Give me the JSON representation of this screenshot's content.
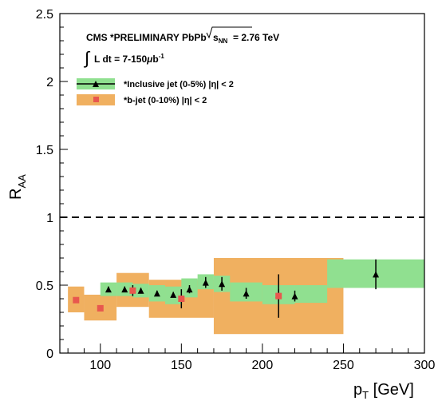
{
  "chart_data": {
    "type": "scatter",
    "xlabel": "p",
    "xlabel_sub": "T",
    "xlabel_unit": " [GeV]",
    "ylabel": "R",
    "ylabel_sub": "AA",
    "xlim": [
      75,
      300
    ],
    "ylim": [
      0,
      2.5
    ],
    "x_ticks": [
      100,
      150,
      200,
      250,
      300
    ],
    "x_tick_labels": [
      "100",
      "150",
      "200",
      "250",
      "300"
    ],
    "y_ticks": [
      0,
      0.5,
      1,
      1.5,
      2,
      2.5
    ],
    "y_tick_labels": [
      "0",
      "0.5",
      "1",
      "1.5",
      "2",
      "2.5"
    ],
    "reference_line": {
      "y": 1,
      "style": "dashed"
    },
    "annotations": {
      "line1_prefix": "CMS  *PRELIMINARY  PbPb ",
      "line1_sqrt": "s",
      "line1_sub": "NN",
      "line1_suffix": " = 2.76 TeV",
      "line2_integral": "∫",
      "line2_text": "L dt = 7-150",
      "line2_mu": "μ",
      "line2_unit": "b",
      "line2_sup": "-1"
    },
    "legend_position": "top-left",
    "series": [
      {
        "name": "*Inclusive jet  (0-5%)  |η| < 2",
        "marker": "triangle",
        "color": "#000000",
        "band_color": "#90e090",
        "points": [
          {
            "x": 105,
            "y": 0.47,
            "err_lo": 0.02,
            "err_hi": 0.02,
            "band_x0": 100,
            "band_x1": 110,
            "band_y0": 0.42,
            "band_y1": 0.52
          },
          {
            "x": 115,
            "y": 0.47,
            "err_lo": 0.02,
            "err_hi": 0.02,
            "band_x0": 110,
            "band_x1": 120,
            "band_y0": 0.42,
            "band_y1": 0.52
          },
          {
            "x": 125,
            "y": 0.46,
            "err_lo": 0.02,
            "err_hi": 0.02,
            "band_x0": 120,
            "band_x1": 130,
            "band_y0": 0.41,
            "band_y1": 0.51
          },
          {
            "x": 135,
            "y": 0.44,
            "err_lo": 0.02,
            "err_hi": 0.02,
            "band_x0": 130,
            "band_x1": 140,
            "band_y0": 0.38,
            "band_y1": 0.5
          },
          {
            "x": 145,
            "y": 0.43,
            "err_lo": 0.02,
            "err_hi": 0.02,
            "band_x0": 140,
            "band_x1": 150,
            "band_y0": 0.36,
            "band_y1": 0.49
          },
          {
            "x": 155,
            "y": 0.47,
            "err_lo": 0.03,
            "err_hi": 0.03,
            "band_x0": 150,
            "band_x1": 160,
            "band_y0": 0.41,
            "band_y1": 0.55
          },
          {
            "x": 165,
            "y": 0.52,
            "err_lo": 0.04,
            "err_hi": 0.04,
            "band_x0": 160,
            "band_x1": 170,
            "band_y0": 0.47,
            "band_y1": 0.58
          },
          {
            "x": 175,
            "y": 0.51,
            "err_lo": 0.05,
            "err_hi": 0.05,
            "band_x0": 170,
            "band_x1": 180,
            "band_y0": 0.45,
            "band_y1": 0.57
          },
          {
            "x": 190,
            "y": 0.44,
            "err_lo": 0.04,
            "err_hi": 0.04,
            "band_x0": 180,
            "band_x1": 200,
            "band_y0": 0.38,
            "band_y1": 0.52
          },
          {
            "x": 210,
            "y": 0.43,
            "err_lo": 0.04,
            "err_hi": 0.04,
            "band_x0": 200,
            "band_x1": 220,
            "band_y0": 0.36,
            "band_y1": 0.5
          },
          {
            "x": 220,
            "y": 0.42,
            "err_lo": 0.04,
            "err_hi": 0.04,
            "band_x0": 220,
            "band_x1": 240,
            "band_y0": 0.37,
            "band_y1": 0.5
          },
          {
            "x": 270,
            "y": 0.58,
            "err_lo": 0.11,
            "err_hi": 0.11,
            "band_x0": 240,
            "band_x1": 300,
            "band_y0": 0.48,
            "band_y1": 0.69
          }
        ]
      },
      {
        "name": "*b-jet  (0-10%)  |η| < 2",
        "marker": "square",
        "color": "#e8574e",
        "band_color": "#f0b060",
        "points": [
          {
            "x": 85,
            "y": 0.39,
            "err_lo": 0.01,
            "err_hi": 0.01,
            "band_x0": 80,
            "band_x1": 90,
            "band_y0": 0.3,
            "band_y1": 0.49
          },
          {
            "x": 100,
            "y": 0.33,
            "err_lo": 0.01,
            "err_hi": 0.01,
            "band_x0": 90,
            "band_x1": 110,
            "band_y0": 0.24,
            "band_y1": 0.43
          },
          {
            "x": 120,
            "y": 0.46,
            "err_lo": 0.04,
            "err_hi": 0.04,
            "band_x0": 110,
            "band_x1": 130,
            "band_y0": 0.34,
            "band_y1": 0.59
          },
          {
            "x": 150,
            "y": 0.4,
            "err_lo": 0.07,
            "err_hi": 0.07,
            "band_x0": 130,
            "band_x1": 170,
            "band_y0": 0.26,
            "band_y1": 0.54
          },
          {
            "x": 210,
            "y": 0.42,
            "err_lo": 0.16,
            "err_hi": 0.16,
            "band_x0": 170,
            "band_x1": 250,
            "band_y0": 0.14,
            "band_y1": 0.7
          }
        ]
      }
    ]
  }
}
